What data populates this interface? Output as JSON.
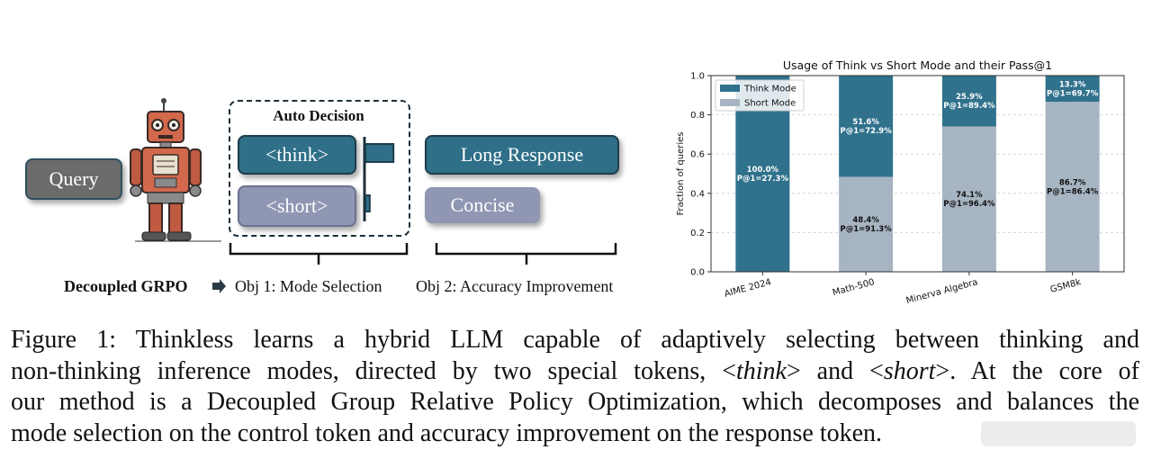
{
  "diagram": {
    "query_label": "Query",
    "auto_decision_title": "Auto Decision",
    "think_token": "<think>",
    "short_token": "<short>",
    "long_response_label": "Long Response",
    "concise_label": "Concise",
    "think_probability": 0.78,
    "short_probability": 0.12,
    "decoupled_label": "Decoupled GRPO",
    "objective_1": "Obj 1: Mode Selection",
    "objective_2": "Obj 2: Accuracy Improvement",
    "colors": {
      "think": "#2f6f88",
      "short": "#8f97b3",
      "query": "#6b6b6b"
    },
    "icons": [
      "robot-icon",
      "arrow-right-icon"
    ]
  },
  "chart_data": {
    "type": "bar",
    "title": "Usage of Think vs Short Mode and their Pass@1",
    "xlabel": "",
    "ylabel": "Fraction of queries",
    "ylim": [
      0,
      1.0
    ],
    "yticks": [
      "0.0",
      "0.2",
      "0.4",
      "0.6",
      "0.8",
      "1.0"
    ],
    "categories": [
      "AIME 2024",
      "Math-500",
      "Minerva Algebra",
      "GSM8k"
    ],
    "stacked": true,
    "grid": true,
    "legend_position": "top-left",
    "series": [
      {
        "name": "Short Mode",
        "color": "#a7b4c2",
        "values": [
          0.0,
          0.484,
          0.741,
          0.867
        ],
        "labels": [
          "",
          "48.4%",
          "74.1%",
          "86.7%"
        ],
        "pass_labels": [
          "",
          "P@1=91.3%",
          "P@1=96.4%",
          "P@1=86.4%"
        ]
      },
      {
        "name": "Think Mode",
        "color": "#30718c",
        "values": [
          1.0,
          0.516,
          0.259,
          0.133
        ],
        "labels": [
          "100.0%",
          "51.6%",
          "25.9%",
          "13.3%"
        ],
        "pass_labels": [
          "P@1=27.3%",
          "P@1=72.9%",
          "P@1=89.4%",
          "P@1=69.7%"
        ]
      }
    ]
  },
  "caption": {
    "line1": "Figure 1: Thinkless learns a hybrid LLM capable of adaptively selecting between thinking and",
    "line2_a": "non-thinking inference modes, directed by two special tokens, <",
    "line2_think": "think",
    "line2_b": "> and <",
    "line2_short": "short",
    "line2_c": ">. At the core of",
    "line3": "our method is a Decoupled Group Relative Policy Optimization, which decomposes and balances the",
    "line4": "mode selection on the control token and accuracy improvement on the response token."
  }
}
